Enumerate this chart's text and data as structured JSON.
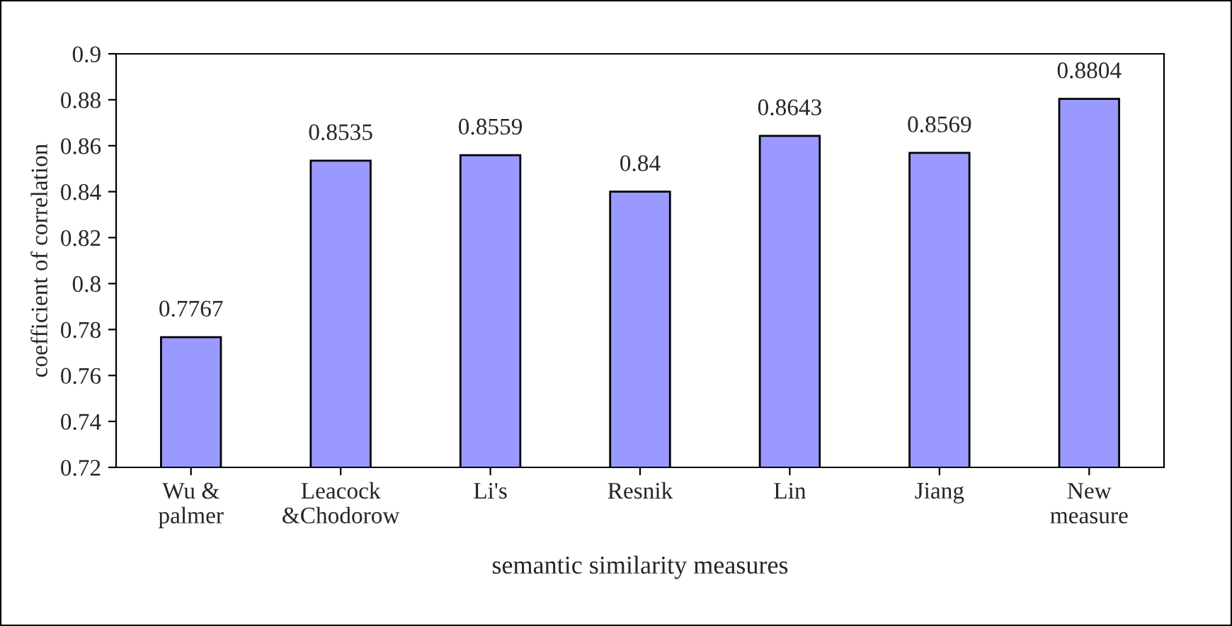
{
  "chart_data": {
    "type": "bar",
    "xlabel": "semantic similarity measures",
    "ylabel": "coefficient of correlation",
    "categories": [
      "Wu &\npalmer",
      "Leacock\n&Chodorow",
      "Li's",
      "Resnik",
      "Lin",
      "Jiang",
      "New\nmeasure"
    ],
    "values": [
      0.7767,
      0.8535,
      0.8559,
      0.84,
      0.8643,
      0.8569,
      0.8804
    ],
    "color": "#9999ff",
    "ylim": [
      0.72,
      0.9
    ],
    "yticks": [
      0.72,
      0.74,
      0.76,
      0.78,
      0.8,
      0.82,
      0.84,
      0.86,
      0.88,
      0.9
    ],
    "data_labels": true,
    "grid": false,
    "legend": false
  }
}
